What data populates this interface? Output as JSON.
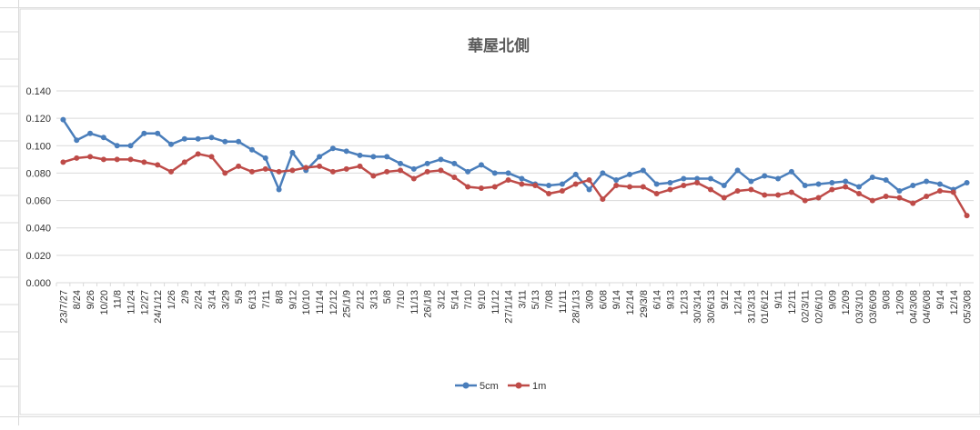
{
  "chart_data": {
    "type": "line",
    "title": "華屋北側",
    "categories": [
      "23/7/27",
      "8/24",
      "9/26",
      "10/20",
      "11/8",
      "11/24",
      "12/27",
      "24/1/12",
      "1/26",
      "2/9",
      "2/24",
      "3/14",
      "3/29",
      "5/9",
      "6/13",
      "7/11",
      "8/8",
      "9/12",
      "10/10",
      "11/14",
      "12/12",
      "25/1/9",
      "2/12",
      "3/13",
      "5/8",
      "7/10",
      "11/13",
      "26/1/8",
      "3/12",
      "5/14",
      "7/10",
      "9/10",
      "11/12",
      "27/1/14",
      "3/11",
      "5/13",
      "7/08",
      "11/11",
      "28/1/13",
      "3/09",
      "6/08",
      "9/14",
      "12/14",
      "29/3/8",
      "6/14",
      "9/13",
      "12/13",
      "30/3/14",
      "30/6/13",
      "9/12",
      "12/14",
      "31/3/13",
      "01/6/12",
      "9/11",
      "12/11",
      "02/3/11",
      "02/6/10",
      "9/09",
      "12/09",
      "03/3/10",
      "03/6/09",
      "9/08",
      "12/09",
      "04/3/08",
      "04/6/08",
      "9/14",
      "12/14",
      "05/3/08"
    ],
    "series": [
      {
        "name": "5cm",
        "color": "#4a7ebb",
        "values": [
          0.119,
          0.104,
          0.109,
          0.106,
          0.1,
          0.1,
          0.109,
          0.109,
          0.101,
          0.105,
          0.105,
          0.106,
          0.103,
          0.103,
          0.097,
          0.091,
          0.068,
          0.095,
          0.082,
          0.092,
          0.098,
          0.096,
          0.093,
          0.092,
          0.092,
          0.087,
          0.083,
          0.087,
          0.09,
          0.087,
          0.081,
          0.086,
          0.08,
          0.08,
          0.076,
          0.072,
          0.071,
          0.072,
          0.079,
          0.068,
          0.08,
          0.075,
          0.079,
          0.082,
          0.072,
          0.073,
          0.076,
          0.076,
          0.076,
          0.071,
          0.082,
          0.074,
          0.078,
          0.076,
          0.081,
          0.071,
          0.072,
          0.073,
          0.074,
          0.07,
          0.077,
          0.075,
          0.067,
          0.071,
          0.074,
          0.072,
          0.068,
          0.073
        ]
      },
      {
        "name": "1m",
        "color": "#be4b48",
        "values": [
          0.088,
          0.091,
          0.092,
          0.09,
          0.09,
          0.09,
          0.088,
          0.086,
          0.081,
          0.088,
          0.094,
          0.092,
          0.08,
          0.085,
          0.081,
          0.083,
          0.081,
          0.082,
          0.084,
          0.085,
          0.081,
          0.083,
          0.085,
          0.078,
          0.081,
          0.082,
          0.076,
          0.081,
          0.082,
          0.077,
          0.07,
          0.069,
          0.07,
          0.075,
          0.072,
          0.071,
          0.065,
          0.067,
          0.072,
          0.075,
          0.061,
          0.071,
          0.07,
          0.07,
          0.065,
          0.068,
          0.071,
          0.073,
          0.068,
          0.062,
          0.067,
          0.068,
          0.064,
          0.064,
          0.066,
          0.06,
          0.062,
          0.068,
          0.07,
          0.065,
          0.06,
          0.063,
          0.062,
          0.058,
          0.063,
          0.067,
          0.066,
          0.049
        ]
      }
    ],
    "ylim": [
      0,
      0.14
    ],
    "yticks": [
      {
        "value": 0,
        "label": "0.000"
      },
      {
        "value": 0.02,
        "label": "0.020"
      },
      {
        "value": 0.04,
        "label": "0.040"
      },
      {
        "value": 0.06,
        "label": "0.060"
      },
      {
        "value": 0.08,
        "label": "0.080"
      },
      {
        "value": 0.1,
        "label": "0.100"
      },
      {
        "value": 0.12,
        "label": "0.120"
      },
      {
        "value": 0.14,
        "label": "0.140"
      }
    ],
    "grid": true,
    "legend": "bottom"
  }
}
